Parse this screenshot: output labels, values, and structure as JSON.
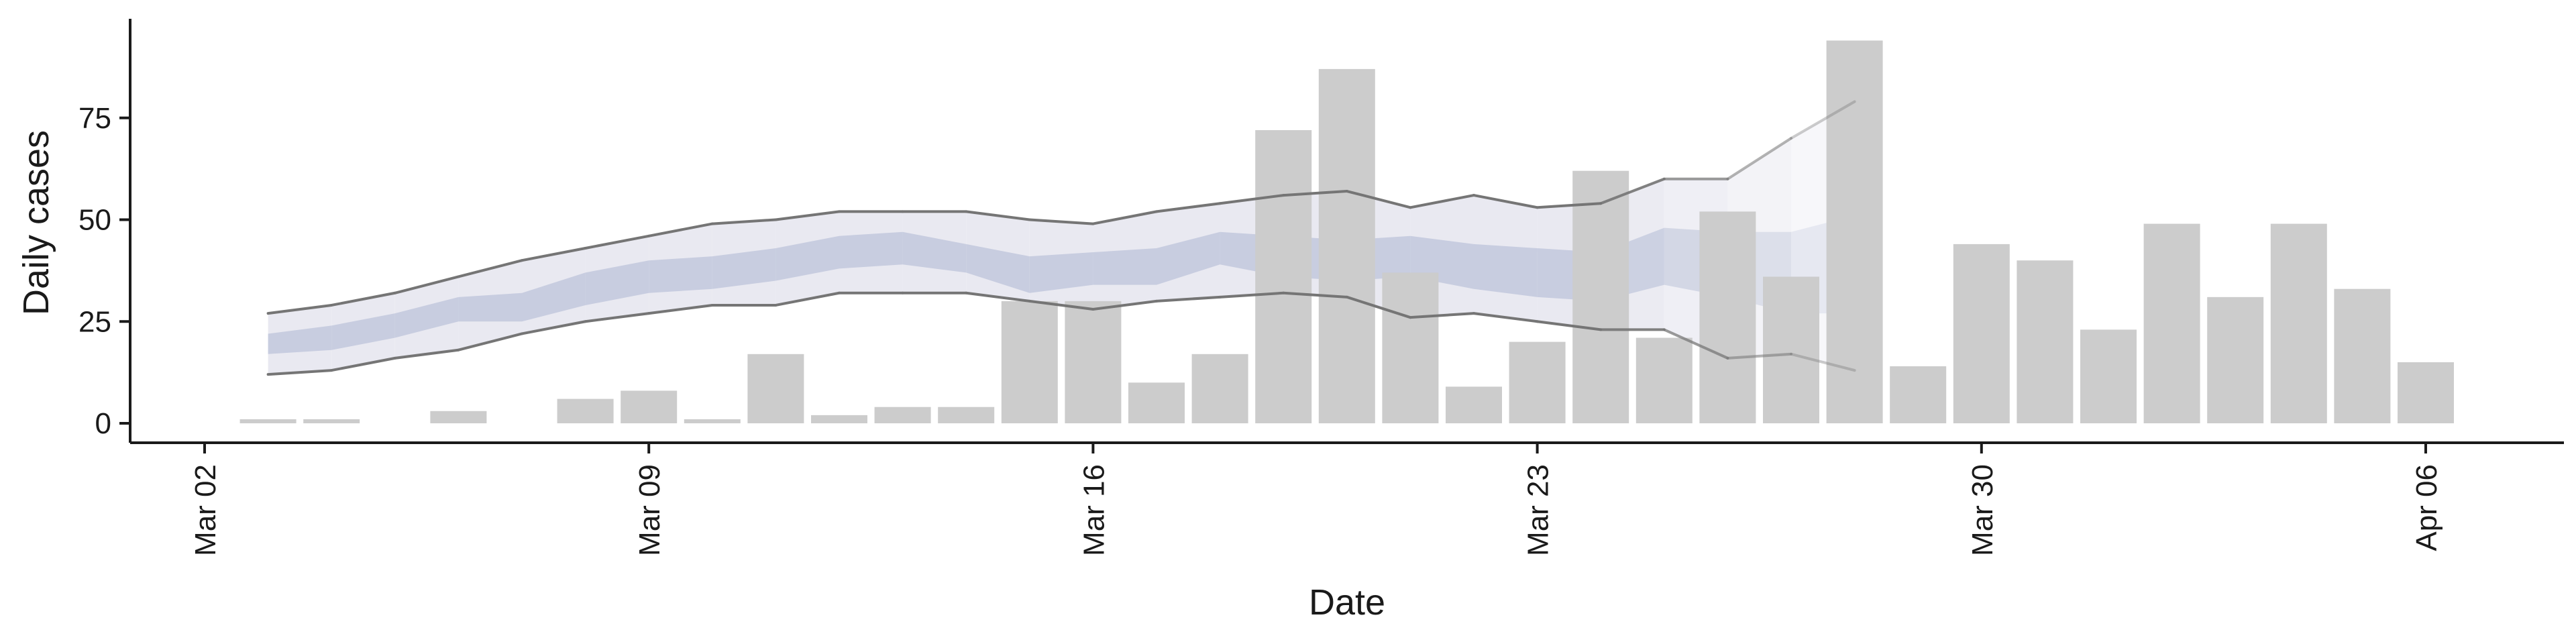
{
  "chart_data": {
    "type": "bar",
    "xlabel": "Date",
    "ylabel": "Daily cases",
    "x_ticks": [
      "Mar 02",
      "Mar 09",
      "Mar 16",
      "Mar 23",
      "Mar 30",
      "Apr 06"
    ],
    "y_ticks": [
      "0",
      "25",
      "50",
      "75"
    ],
    "ylim": [
      -4,
      98
    ],
    "xlim": [
      "2020-02-29",
      "2020-04-08"
    ],
    "grid": false,
    "legend": "none",
    "colors": {
      "bars": "#cccccc",
      "band_outer": "#e9e9f1",
      "band_inner": "#c8cde0",
      "line": "#757575"
    },
    "bars": {
      "dates": [
        "2020-03-03",
        "2020-03-04",
        "2020-03-05",
        "2020-03-06",
        "2020-03-07",
        "2020-03-08",
        "2020-03-09",
        "2020-03-10",
        "2020-03-11",
        "2020-03-12",
        "2020-03-13",
        "2020-03-14",
        "2020-03-15",
        "2020-03-16",
        "2020-03-17",
        "2020-03-18",
        "2020-03-19",
        "2020-03-20",
        "2020-03-21",
        "2020-03-22",
        "2020-03-23",
        "2020-03-24",
        "2020-03-25",
        "2020-03-26",
        "2020-03-27",
        "2020-03-28",
        "2020-03-29",
        "2020-03-30",
        "2020-03-31",
        "2020-04-01",
        "2020-04-02",
        "2020-04-03",
        "2020-04-04",
        "2020-04-05",
        "2020-04-06"
      ],
      "values": [
        1,
        1,
        0,
        3,
        0,
        6,
        8,
        1,
        17,
        2,
        4,
        4,
        30,
        30,
        10,
        17,
        72,
        87,
        37,
        9,
        20,
        62,
        21,
        52,
        36,
        94,
        14,
        44,
        40,
        23,
        49,
        31,
        49,
        33,
        15
      ]
    },
    "estimate": {
      "dates": [
        "2020-03-03",
        "2020-03-04",
        "2020-03-05",
        "2020-03-06",
        "2020-03-07",
        "2020-03-08",
        "2020-03-09",
        "2020-03-10",
        "2020-03-11",
        "2020-03-12",
        "2020-03-13",
        "2020-03-14",
        "2020-03-15",
        "2020-03-16",
        "2020-03-17",
        "2020-03-18",
        "2020-03-19",
        "2020-03-20",
        "2020-03-21",
        "2020-03-22",
        "2020-03-23",
        "2020-03-24",
        "2020-03-25",
        "2020-03-26",
        "2020-03-27",
        "2020-03-28"
      ],
      "outer_upper": [
        27,
        29,
        32,
        36,
        40,
        43,
        46,
        49,
        50,
        52,
        52,
        52,
        50,
        49,
        52,
        54,
        56,
        57,
        53,
        56,
        53,
        54,
        60,
        60,
        70,
        79
      ],
      "outer_lower": [
        12,
        13,
        16,
        18,
        22,
        25,
        27,
        29,
        29,
        32,
        32,
        32,
        30,
        28,
        30,
        31,
        32,
        31,
        26,
        27,
        25,
        23,
        23,
        16,
        17,
        13
      ],
      "inner_upper": [
        22,
        24,
        27,
        31,
        32,
        37,
        40,
        41,
        43,
        46,
        47,
        44,
        41,
        42,
        43,
        47,
        46,
        45,
        46,
        44,
        43,
        42,
        48,
        47,
        47,
        51
      ],
      "inner_lower": [
        17,
        18,
        21,
        25,
        25,
        29,
        32,
        33,
        35,
        38,
        39,
        37,
        32,
        34,
        34,
        39,
        36,
        35,
        36,
        33,
        31,
        30,
        34,
        31,
        27,
        27
      ]
    }
  }
}
